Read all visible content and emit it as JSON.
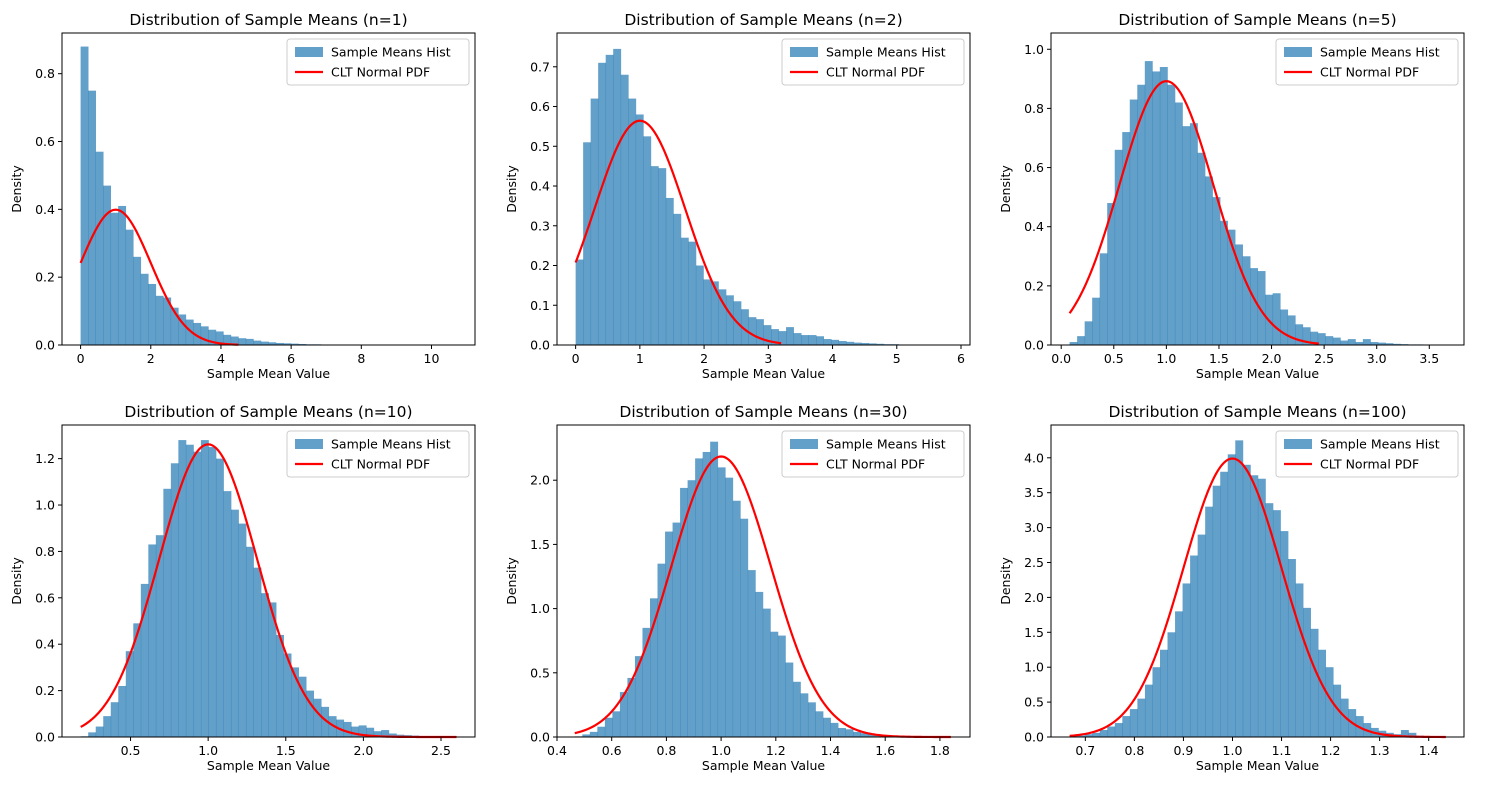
{
  "chart_data": [
    {
      "type": "bar",
      "title": "Distribution of Sample Means (n=1)",
      "xlabel": "Sample Mean Value",
      "ylabel": "Density",
      "xlim": [
        -0.53,
        11.24
      ],
      "ylim": [
        0,
        0.92
      ],
      "xticks": [
        0,
        2,
        4,
        6,
        8,
        10
      ],
      "xtick_labels": [
        "0",
        "2",
        "4",
        "6",
        "8",
        "10"
      ],
      "yticks": [
        0,
        0.2,
        0.4,
        0.6,
        0.8
      ],
      "ytick_labels": [
        "0.0",
        "0.2",
        "0.4",
        "0.6",
        "0.8"
      ],
      "bins": {
        "start": 0,
        "width": 0.214
      },
      "series": [
        {
          "name": "Sample Means Hist",
          "kind": "histogram",
          "color": "#1f77b4",
          "alpha": 0.7,
          "values": [
            0.88,
            0.75,
            0.57,
            0.47,
            0.39,
            0.41,
            0.34,
            0.26,
            0.21,
            0.18,
            0.145,
            0.14,
            0.11,
            0.09,
            0.075,
            0.065,
            0.055,
            0.045,
            0.04,
            0.03,
            0.025,
            0.02,
            0.018,
            0.013,
            0.01,
            0.008,
            0.006,
            0.005,
            0.004,
            0.003,
            0.002,
            0.002,
            0.001,
            0.001,
            0.001,
            0.001,
            0.001,
            0.0005,
            0.0005,
            0.0005,
            0.0003,
            0.0003,
            0.0003,
            0.0003,
            0.0002,
            0.0002,
            0.0002,
            0.0001,
            0.0001,
            0.0001
          ]
        },
        {
          "name": "CLT Normal PDF",
          "kind": "line",
          "color": "#ff0000",
          "mu": 1.0,
          "sigma": 1.0,
          "x_range": [
            0,
            4.5
          ]
        }
      ],
      "legend": "top-right"
    },
    {
      "type": "bar",
      "title": "Distribution of Sample Means (n=2)",
      "xlabel": "Sample Mean Value",
      "ylabel": "Density",
      "xlim": [
        -0.29,
        6.14
      ],
      "ylim": [
        0,
        0.785
      ],
      "xticks": [
        0,
        1,
        2,
        3,
        4,
        5,
        6
      ],
      "xtick_labels": [
        "0",
        "1",
        "2",
        "3",
        "4",
        "5",
        "6"
      ],
      "yticks": [
        0,
        0.1,
        0.2,
        0.3,
        0.4,
        0.5,
        0.6,
        0.7
      ],
      "ytick_labels": [
        "0.0",
        "0.1",
        "0.2",
        "0.3",
        "0.4",
        "0.5",
        "0.6",
        "0.7"
      ],
      "bins": {
        "start": 0,
        "width": 0.117
      },
      "series": [
        {
          "name": "Sample Means Hist",
          "kind": "histogram",
          "color": "#1f77b4",
          "alpha": 0.7,
          "values": [
            0.215,
            0.51,
            0.62,
            0.71,
            0.73,
            0.745,
            0.68,
            0.62,
            0.58,
            0.525,
            0.45,
            0.445,
            0.37,
            0.33,
            0.27,
            0.26,
            0.2,
            0.165,
            0.16,
            0.14,
            0.125,
            0.11,
            0.09,
            0.07,
            0.065,
            0.05,
            0.04,
            0.035,
            0.045,
            0.03,
            0.025,
            0.025,
            0.022,
            0.015,
            0.013,
            0.01,
            0.008,
            0.006,
            0.005,
            0.004,
            0.003,
            0.002,
            0.002,
            0.001,
            0.001,
            0.001,
            0.001,
            0.0005,
            0.0005,
            0.0005
          ]
        },
        {
          "name": "CLT Normal PDF",
          "kind": "line",
          "color": "#ff0000",
          "mu": 1.0,
          "sigma": 0.7071,
          "x_range": [
            0,
            3.2
          ]
        }
      ],
      "legend": "top-right"
    },
    {
      "type": "bar",
      "title": "Distribution of Sample Means (n=5)",
      "xlabel": "Sample Mean Value",
      "ylabel": "Density",
      "xlim": [
        -0.097,
        3.83
      ],
      "ylim": [
        0,
        1.055
      ],
      "xticks": [
        0,
        0.5,
        1,
        1.5,
        2,
        2.5,
        3,
        3.5
      ],
      "xtick_labels": [
        "0.0",
        "0.5",
        "1.0",
        "1.5",
        "2.0",
        "2.5",
        "3.0",
        "3.5"
      ],
      "yticks": [
        0,
        0.2,
        0.4,
        0.6,
        0.8,
        1.0
      ],
      "ytick_labels": [
        "0.0",
        "0.2",
        "0.4",
        "0.6",
        "0.8",
        "1.0"
      ],
      "bins": {
        "start": 0.08,
        "width": 0.0715
      },
      "series": [
        {
          "name": "Sample Means Hist",
          "kind": "histogram",
          "color": "#1f77b4",
          "alpha": 0.7,
          "values": [
            0.01,
            0.03,
            0.08,
            0.16,
            0.31,
            0.48,
            0.66,
            0.72,
            0.83,
            0.88,
            0.96,
            0.925,
            0.94,
            0.88,
            0.82,
            0.74,
            0.75,
            0.65,
            0.57,
            0.5,
            0.42,
            0.39,
            0.34,
            0.3,
            0.26,
            0.25,
            0.17,
            0.175,
            0.12,
            0.1,
            0.07,
            0.06,
            0.045,
            0.04,
            0.03,
            0.025,
            0.015,
            0.02,
            0.01,
            0.02,
            0.01,
            0.008,
            0.006,
            0.004,
            0.003,
            0.002,
            0.002,
            0.001,
            0.001,
            0.001
          ]
        },
        {
          "name": "CLT Normal PDF",
          "kind": "line",
          "color": "#ff0000",
          "mu": 1.0,
          "sigma": 0.4472,
          "x_range": [
            0.08,
            2.45
          ]
        }
      ],
      "legend": "top-right"
    },
    {
      "type": "bar",
      "title": "Distribution of Sample Means (n=10)",
      "xlabel": "Sample Mean Value",
      "ylabel": "Density",
      "xlim": [
        0.0585,
        2.719
      ],
      "ylim": [
        0,
        1.345
      ],
      "xticks": [
        0.5,
        1,
        1.5,
        2,
        2.5
      ],
      "xtick_labels": [
        "0.5",
        "1.0",
        "1.5",
        "2.0",
        "2.5"
      ],
      "yticks": [
        0,
        0.2,
        0.4,
        0.6,
        0.8,
        1.0,
        1.2
      ],
      "ytick_labels": [
        "0.0",
        "0.2",
        "0.4",
        "0.6",
        "0.8",
        "1.0",
        "1.2"
      ],
      "bins": {
        "start": 0.179,
        "width": 0.0484
      },
      "series": [
        {
          "name": "Sample Means Hist",
          "kind": "histogram",
          "color": "#1f77b4",
          "alpha": 0.7,
          "values": [
            0.003,
            0.02,
            0.045,
            0.09,
            0.15,
            0.22,
            0.37,
            0.49,
            0.66,
            0.83,
            0.87,
            1.07,
            1.18,
            1.28,
            1.26,
            1.23,
            1.28,
            1.25,
            1.2,
            1.06,
            0.98,
            0.92,
            0.82,
            0.73,
            0.62,
            0.58,
            0.44,
            0.36,
            0.3,
            0.26,
            0.2,
            0.165,
            0.13,
            0.09,
            0.075,
            0.065,
            0.045,
            0.05,
            0.04,
            0.025,
            0.03,
            0.015,
            0.01,
            0.008,
            0.006,
            0.004,
            0.003,
            0.002,
            0.001,
            0.001
          ]
        },
        {
          "name": "CLT Normal PDF",
          "kind": "line",
          "color": "#ff0000",
          "mu": 1.0,
          "sigma": 0.3162,
          "x_range": [
            0.179,
            2.6
          ]
        }
      ],
      "legend": "top-right"
    },
    {
      "type": "bar",
      "title": "Distribution of Sample Means (n=30)",
      "xlabel": "Sample Mean Value",
      "ylabel": "Density",
      "xlim": [
        0.4,
        1.91
      ],
      "ylim": [
        0,
        2.43
      ],
      "xticks": [
        0.4,
        0.6,
        0.8,
        1.0,
        1.2,
        1.4,
        1.6,
        1.8
      ],
      "xtick_labels": [
        "0.4",
        "0.6",
        "0.8",
        "1.0",
        "1.2",
        "1.4",
        "1.6",
        "1.8"
      ],
      "yticks": [
        0,
        0.5,
        1.0,
        1.5,
        2.0
      ],
      "ytick_labels": [
        "0.0",
        "0.5",
        "1.0",
        "1.5",
        "2.0"
      ],
      "bins": {
        "start": 0.465,
        "width": 0.0275
      },
      "series": [
        {
          "name": "Sample Means Hist",
          "kind": "histogram",
          "color": "#1f77b4",
          "alpha": 0.7,
          "values": [
            0.005,
            0.02,
            0.04,
            0.08,
            0.15,
            0.2,
            0.35,
            0.46,
            0.63,
            0.85,
            1.08,
            1.35,
            1.6,
            1.67,
            1.94,
            2.0,
            2.17,
            2.22,
            2.3,
            2.1,
            2.02,
            1.84,
            1.7,
            1.3,
            1.13,
            1.0,
            0.82,
            0.79,
            0.58,
            0.43,
            0.34,
            0.27,
            0.2,
            0.15,
            0.11,
            0.07,
            0.06,
            0.04,
            0.03,
            0.02,
            0.015,
            0.01,
            0.005,
            0.005,
            0.003,
            0.002,
            0.002,
            0.001,
            0.001,
            0.001
          ]
        },
        {
          "name": "CLT Normal PDF",
          "kind": "line",
          "color": "#ff0000",
          "mu": 1.0,
          "sigma": 0.1826,
          "x_range": [
            0.465,
            1.84
          ]
        }
      ],
      "legend": "top-right"
    },
    {
      "type": "bar",
      "title": "Distribution of Sample Means (n=100)",
      "xlabel": "Sample Mean Value",
      "ylabel": "Density",
      "xlim": [
        0.63,
        1.472
      ],
      "ylim": [
        0,
        4.47
      ],
      "xticks": [
        0.7,
        0.8,
        0.9,
        1.0,
        1.1,
        1.2,
        1.3,
        1.4
      ],
      "xtick_labels": [
        "0.7",
        "0.8",
        "0.9",
        "1.0",
        "1.1",
        "1.2",
        "1.3",
        "1.4"
      ],
      "yticks": [
        0,
        0.5,
        1.0,
        1.5,
        2.0,
        2.5,
        3.0,
        3.5,
        4.0
      ],
      "ytick_labels": [
        "0.0",
        "0.5",
        "1.0",
        "1.5",
        "2.0",
        "2.5",
        "3.0",
        "3.5",
        "4.0"
      ],
      "bins": {
        "start": 0.668,
        "width": 0.01535
      },
      "series": [
        {
          "name": "Sample Means Hist",
          "kind": "histogram",
          "color": "#1f77b4",
          "alpha": 0.7,
          "values": [
            0.01,
            0.02,
            0.04,
            0.06,
            0.1,
            0.15,
            0.2,
            0.3,
            0.4,
            0.55,
            0.75,
            1.0,
            1.25,
            1.5,
            1.8,
            2.2,
            2.6,
            2.9,
            3.3,
            3.6,
            3.8,
            4.05,
            4.25,
            3.9,
            3.75,
            3.7,
            3.35,
            3.25,
            2.95,
            2.55,
            2.2,
            1.85,
            1.55,
            1.25,
            1.0,
            0.75,
            0.55,
            0.4,
            0.3,
            0.2,
            0.13,
            0.09,
            0.06,
            0.04,
            0.1,
            0.06,
            0.02,
            0.01,
            0.005,
            0.005
          ]
        },
        {
          "name": "CLT Normal PDF",
          "kind": "line",
          "color": "#ff0000",
          "mu": 1.0,
          "sigma": 0.1,
          "x_range": [
            0.668,
            1.435
          ]
        }
      ],
      "legend": "top-right"
    }
  ]
}
